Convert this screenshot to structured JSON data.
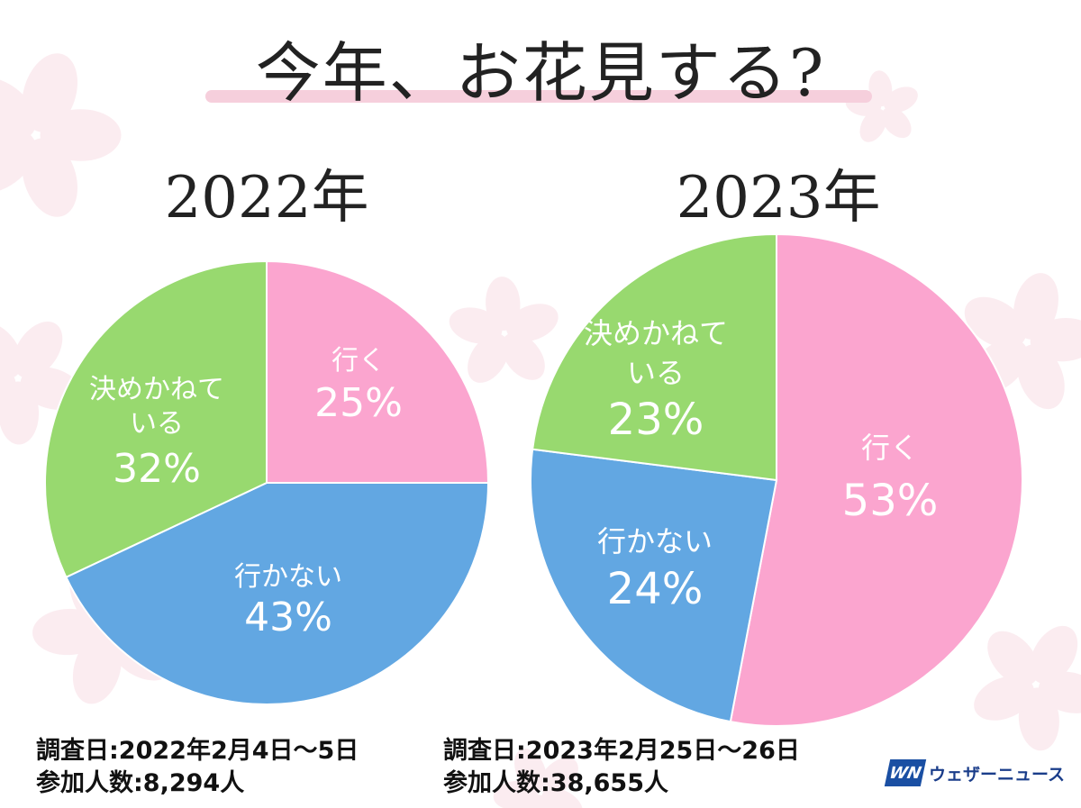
{
  "title": "今年、お花見する?",
  "colors": {
    "go": "#fba5cf",
    "not_go": "#62a7e2",
    "undecided": "#98d96f",
    "title_underline": "#f6cfdc",
    "label_text": "#ffffff"
  },
  "chart_data": [
    {
      "type": "pie",
      "title": "2022年",
      "slices": [
        {
          "label": "行く",
          "value": 25,
          "display": "25%",
          "color_key": "go"
        },
        {
          "label": "行かない",
          "value": 43,
          "display": "43%",
          "color_key": "not_go"
        },
        {
          "label": "決めかねている",
          "value": 32,
          "display": "32%",
          "color_key": "undecided"
        }
      ],
      "survey_date": "調査日:2022年2月4日〜5日",
      "participants": "参加人数:8,294人"
    },
    {
      "type": "pie",
      "title": "2023年",
      "slices": [
        {
          "label": "行く",
          "value": 53,
          "display": "53%",
          "color_key": "go"
        },
        {
          "label": "行かない",
          "value": 24,
          "display": "24%",
          "color_key": "not_go"
        },
        {
          "label": "決めかねている",
          "value": 23,
          "display": "23%",
          "color_key": "undecided"
        }
      ],
      "survey_date": "調査日:2023年2月25日〜26日",
      "participants": "参加人数:38,655人"
    }
  ],
  "logo": {
    "mark": "WN",
    "text": "ウェザーニュース"
  }
}
